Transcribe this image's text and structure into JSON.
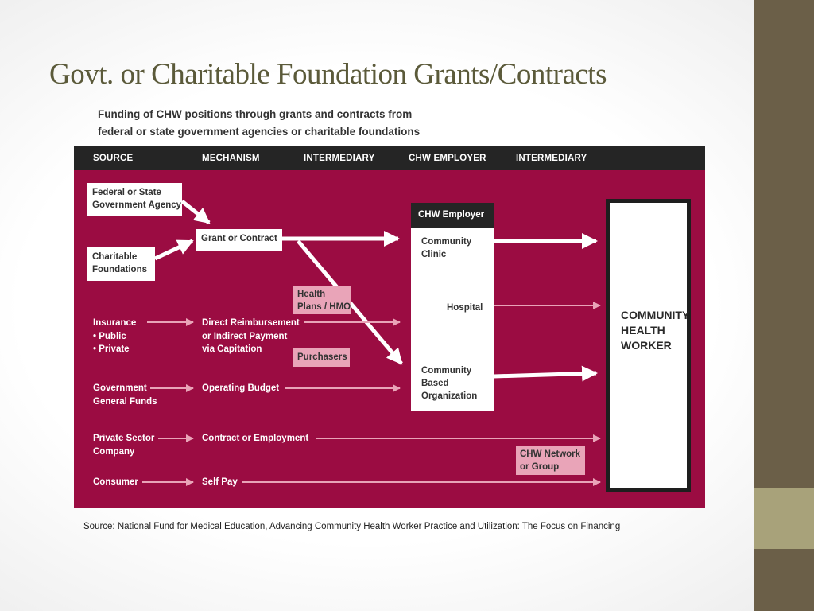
{
  "title": "Govt. or Charitable Foundation Grants/Contracts",
  "caption": {
    "line1": "Funding of CHW positions through grants and contracts from",
    "line2": "federal or state government agencies or charitable foundations"
  },
  "columns": [
    "SOURCE",
    "MECHANISM",
    "INTERMEDIARY",
    "CHW EMPLOYER",
    "INTERMEDIARY"
  ],
  "nodes": {
    "federal": [
      "Federal or State",
      "Government Agency"
    ],
    "charitable": [
      "Charitable",
      "Foundations"
    ],
    "grant": "Grant or Contract",
    "health_plans": [
      "Health",
      "Plans / HMO"
    ],
    "purchasers": "Purchasers",
    "insurance": [
      "Insurance",
      "• Public",
      "• Private"
    ],
    "direct_reimbursement": [
      "Direct Reimbursement",
      "or Indirect Payment",
      "via Capitation"
    ],
    "gov_funds": [
      "Government",
      "General Funds"
    ],
    "operating_budget": "Operating Budget",
    "private_sector": [
      "Private Sector",
      "Company"
    ],
    "contract_employment": "Contract or Employment",
    "consumer": "Consumer",
    "self_pay": "Self Pay",
    "chw_network": [
      "CHW Network",
      "or Group"
    ],
    "employer_title": "CHW Employer",
    "clinic": [
      "Community",
      "Clinic"
    ],
    "hospital": "Hospital",
    "cbo": [
      "Community",
      "Based",
      "Organization"
    ],
    "chw": [
      "COMMUNITY",
      "HEALTH",
      "WORKER"
    ]
  },
  "colors": {
    "panel": "#9b0c42",
    "header": "#252525",
    "pink": "#e9a4b8",
    "title": "#5b5a3a",
    "sidebar": "#6b5f48",
    "sidebar_accent": "#a8a27a"
  },
  "source": "Source: National Fund for Medical Education, Advancing Community Health Worker Practice and Utilization: The Focus on Financing"
}
